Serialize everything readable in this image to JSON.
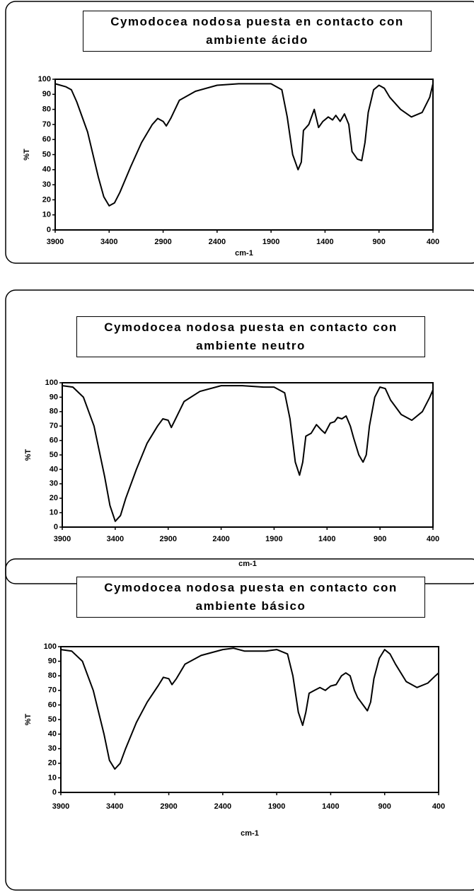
{
  "chart_data": [
    {
      "type": "line",
      "title": "Cymodocea nodosa puesta en contacto con ambiente ácido",
      "xlabel": "cm-1",
      "ylabel": "%T",
      "color": "#000000",
      "xlim": [
        3900,
        400
      ],
      "ylim": [
        0,
        100
      ],
      "xticks": [
        3900,
        3400,
        2900,
        2400,
        1900,
        1400,
        900,
        400
      ],
      "yticks": [
        0,
        10,
        20,
        30,
        40,
        50,
        60,
        70,
        80,
        90,
        100
      ],
      "x": [
        3900,
        3800,
        3750,
        3700,
        3600,
        3500,
        3450,
        3400,
        3350,
        3300,
        3200,
        3100,
        3000,
        2950,
        2900,
        2870,
        2830,
        2750,
        2600,
        2400,
        2200,
        2000,
        1900,
        1800,
        1750,
        1700,
        1650,
        1620,
        1600,
        1550,
        1500,
        1460,
        1420,
        1370,
        1330,
        1300,
        1260,
        1220,
        1180,
        1150,
        1100,
        1060,
        1030,
        1000,
        950,
        900,
        850,
        800,
        700,
        600,
        500,
        430,
        400
      ],
      "values": [
        97,
        95,
        93,
        85,
        65,
        35,
        22,
        16,
        18,
        25,
        42,
        58,
        70,
        74,
        72,
        69,
        74,
        86,
        92,
        96,
        97,
        97,
        97,
        93,
        75,
        50,
        40,
        45,
        66,
        70,
        80,
        68,
        72,
        75,
        73,
        76,
        72,
        77,
        70,
        52,
        47,
        46,
        58,
        78,
        93,
        96,
        94,
        88,
        80,
        75,
        78,
        88,
        97
      ]
    },
    {
      "type": "line",
      "title": "Cymodocea nodosa puesta en contacto con ambiente neutro",
      "xlabel": "cm-1",
      "ylabel": "%T",
      "color": "#000000",
      "xlim": [
        3900,
        400
      ],
      "ylim": [
        0,
        100
      ],
      "xticks": [
        3900,
        3400,
        2900,
        2400,
        1900,
        1400,
        900,
        400
      ],
      "yticks": [
        0,
        10,
        20,
        30,
        40,
        50,
        60,
        70,
        80,
        90,
        100
      ],
      "x": [
        3900,
        3800,
        3700,
        3600,
        3500,
        3450,
        3400,
        3350,
        3300,
        3200,
        3100,
        3000,
        2950,
        2900,
        2870,
        2830,
        2750,
        2600,
        2400,
        2200,
        2000,
        1900,
        1800,
        1750,
        1700,
        1660,
        1630,
        1600,
        1550,
        1500,
        1450,
        1420,
        1370,
        1330,
        1300,
        1260,
        1220,
        1180,
        1150,
        1100,
        1060,
        1030,
        1000,
        950,
        900,
        850,
        800,
        700,
        600,
        500,
        430,
        400
      ],
      "values": [
        98,
        97,
        90,
        70,
        35,
        15,
        4,
        8,
        20,
        40,
        58,
        70,
        75,
        74,
        69,
        75,
        87,
        94,
        98,
        98,
        97,
        97,
        93,
        75,
        45,
        36,
        45,
        63,
        65,
        71,
        67,
        65,
        72,
        73,
        76,
        75,
        77,
        70,
        62,
        50,
        45,
        50,
        70,
        90,
        97,
        96,
        88,
        78,
        74,
        80,
        90,
        95
      ]
    },
    {
      "type": "line",
      "title": "Cymodocea nodosa puesta en contacto con ambiente básico",
      "xlabel": "cm-1",
      "ylabel": "%T",
      "color": "#000000",
      "xlim": [
        3900,
        400
      ],
      "ylim": [
        0,
        100
      ],
      "xticks": [
        3900,
        3400,
        2900,
        2400,
        1900,
        1400,
        900,
        400
      ],
      "yticks": [
        0,
        10,
        20,
        30,
        40,
        50,
        60,
        70,
        80,
        90,
        100
      ],
      "x": [
        3900,
        3800,
        3700,
        3600,
        3500,
        3450,
        3400,
        3350,
        3300,
        3200,
        3100,
        3000,
        2950,
        2900,
        2870,
        2830,
        2750,
        2600,
        2400,
        2300,
        2200,
        2000,
        1900,
        1800,
        1750,
        1700,
        1660,
        1630,
        1600,
        1550,
        1500,
        1450,
        1400,
        1350,
        1300,
        1260,
        1220,
        1180,
        1150,
        1100,
        1060,
        1030,
        1000,
        950,
        900,
        850,
        800,
        700,
        600,
        500,
        430,
        400
      ],
      "values": [
        98,
        97,
        90,
        70,
        40,
        22,
        16,
        20,
        30,
        48,
        62,
        73,
        79,
        78,
        74,
        78,
        88,
        94,
        98,
        99,
        97,
        97,
        98,
        95,
        80,
        55,
        46,
        55,
        68,
        70,
        72,
        70,
        73,
        74,
        80,
        82,
        80,
        70,
        65,
        60,
        56,
        62,
        78,
        92,
        98,
        95,
        88,
        76,
        72,
        75,
        80,
        82
      ]
    }
  ]
}
